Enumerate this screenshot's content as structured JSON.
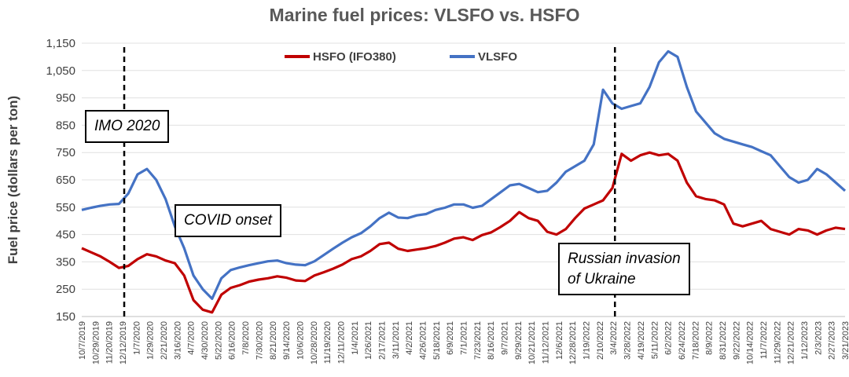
{
  "chart_data": {
    "type": "line",
    "title": "Marine fuel prices: VLSFO vs. HSFO",
    "ylabel": "Fuel price  (dollars per ton)",
    "xlabel": "",
    "ylim": [
      150,
      1150
    ],
    "yticks": [
      "150",
      "250",
      "350",
      "450",
      "550",
      "650",
      "750",
      "850",
      "950",
      "1,050",
      "1,150"
    ],
    "xticks": [
      "10/7/2019",
      "10/29/2019",
      "11/20/2019",
      "12/12/2019",
      "1/7/2020",
      "1/29/2020",
      "2/21/2020",
      "3/16/2020",
      "4/7/2020",
      "4/30/2020",
      "5/22/2020",
      "6/16/2020",
      "7/8/2020",
      "7/30/2020",
      "8/21/2020",
      "9/14/2020",
      "10/6/2020",
      "10/28/2020",
      "11/19/2020",
      "12/11/2020",
      "1/4/2021",
      "1/26/2021",
      "2/17/2021",
      "3/11/2021",
      "4/2/2021",
      "4/26/2021",
      "5/18/2021",
      "6/9/2021",
      "7/1/2021",
      "7/23/2021",
      "8/16/2021",
      "9/7/2021",
      "9/29/2021",
      "10/21/2021",
      "11/12/2021",
      "12/6/2021",
      "12/28/2021",
      "1/19/2022",
      "2/10/2022",
      "3/4/2022",
      "3/28/2022",
      "4/19/2022",
      "5/11/2022",
      "6/2/2022",
      "6/24/2022",
      "7/18/2022",
      "8/9/2022",
      "8/31/2022",
      "9/22/2022",
      "10/14/2022",
      "11/7/2022",
      "11/29/2022",
      "12/21/2022",
      "1/12/2023",
      "2/3/2023",
      "2/27/2023",
      "3/21/2023"
    ],
    "legend": "top",
    "grid": true,
    "series": [
      {
        "name": "HSFO (IFO380)",
        "color": "#c00000",
        "values": [
          400,
          385,
          370,
          350,
          328,
          335,
          360,
          378,
          370,
          355,
          345,
          300,
          210,
          175,
          165,
          230,
          255,
          265,
          278,
          285,
          290,
          297,
          292,
          282,
          280,
          300,
          312,
          325,
          340,
          360,
          370,
          390,
          415,
          420,
          398,
          390,
          395,
          400,
          408,
          420,
          435,
          440,
          430,
          448,
          458,
          478,
          500,
          532,
          510,
          500,
          460,
          450,
          470,
          510,
          545,
          560,
          575,
          620,
          745,
          720,
          740,
          750,
          740,
          745,
          720,
          640,
          590,
          580,
          575,
          560,
          490,
          480,
          490,
          500,
          470,
          460,
          450,
          470,
          465,
          450,
          465,
          475,
          470
        ]
      },
      {
        "name": "VLSFO",
        "color": "#4472c4",
        "values": [
          540,
          548,
          555,
          560,
          562,
          600,
          670,
          690,
          650,
          580,
          480,
          400,
          300,
          250,
          215,
          290,
          320,
          330,
          338,
          345,
          352,
          355,
          345,
          340,
          338,
          352,
          375,
          398,
          420,
          440,
          455,
          480,
          510,
          530,
          512,
          510,
          520,
          525,
          540,
          548,
          560,
          560,
          548,
          555,
          580,
          605,
          630,
          635,
          620,
          605,
          610,
          640,
          680,
          700,
          720,
          780,
          980,
          930,
          910,
          920,
          930,
          990,
          1080,
          1120,
          1100,
          990,
          900,
          860,
          820,
          800,
          790,
          780,
          770,
          755,
          740,
          700,
          660,
          640,
          650,
          690,
          670,
          640,
          610
        ]
      }
    ],
    "annotations": [
      {
        "label": "IMO 2020",
        "x_category": "12/12/2019"
      },
      {
        "label": "Russian invasion of Ukraine",
        "x_category": "3/4/2022"
      }
    ],
    "text_boxes": [
      "IMO 2020",
      "COVID onset",
      "Russian invasion\nof Ukraine"
    ]
  }
}
